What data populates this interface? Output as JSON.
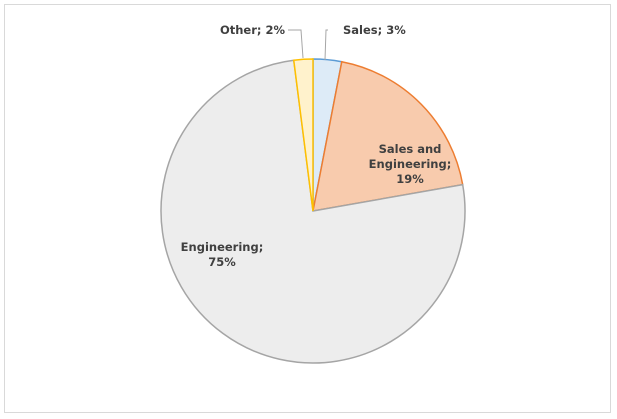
{
  "chart_data": {
    "type": "pie",
    "categories": [
      "Sales",
      "Sales and Engineering",
      "Engineering",
      "Other"
    ],
    "values": [
      3,
      19,
      75,
      2
    ],
    "value_labels": [
      "Sales; 3%",
      "Sales and Engineering; 19%",
      "Engineering; 75%",
      "Other; 2%"
    ],
    "colors": [
      "#ddebf7",
      "#f8cbad",
      "#ededed",
      "#fff2cc"
    ],
    "edge_colors": [
      "#5b9bd5",
      "#ed7d31",
      "#a5a5a5",
      "#ffc000"
    ]
  }
}
